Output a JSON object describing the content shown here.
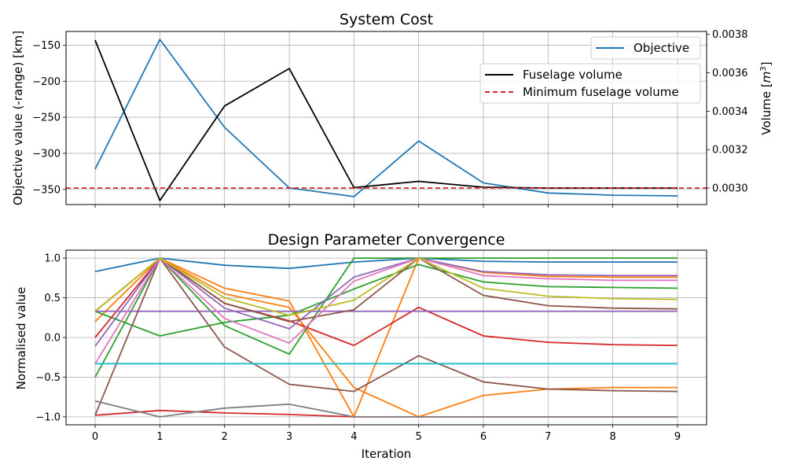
{
  "chart_data": [
    {
      "type": "line",
      "title": "System Cost",
      "xlabel": "",
      "ylabel": "Objective value (-range) [km]",
      "y2label_main": "Volume [",
      "y2label_sup": "m",
      "y2label_exp": "3",
      "y2label_end": "]",
      "x": [
        0,
        1,
        2,
        3,
        4,
        5,
        6,
        7,
        8,
        9
      ],
      "xlim": [
        -0.45,
        9.45
      ],
      "ylim": [
        -371,
        -131
      ],
      "y_ticks": [
        -150,
        -200,
        -250,
        -300,
        -350
      ],
      "y_tick_labels": [
        "−150",
        "−200",
        "−250",
        "−300",
        "−350"
      ],
      "y2lim": [
        0.002914,
        0.003815
      ],
      "y2_ticks": [
        0.003,
        0.0032,
        0.0034,
        0.0036,
        0.0038
      ],
      "y2_tick_labels": [
        "0.0030",
        "0.0032",
        "0.0034",
        "0.0036",
        "0.0038"
      ],
      "grid": true,
      "series": [
        {
          "name": "Objective",
          "axis": "left",
          "color": "#1f77b4",
          "dash": "none",
          "values": [
            -322,
            -142,
            -264,
            -348,
            -360,
            -283,
            -341,
            -355,
            -358,
            -359
          ]
        },
        {
          "name": "Fuselage volume",
          "axis": "right",
          "color": "#000000",
          "dash": "none",
          "values": [
            0.00377,
            0.002935,
            0.003427,
            0.003622,
            0.003002,
            0.003035,
            0.003004,
            0.003,
            0.003,
            0.003
          ]
        },
        {
          "name": "Minimum fuselage volume",
          "axis": "right",
          "color": "#d62728",
          "dash": "6,4",
          "hline": true,
          "values": [
            0.003,
            0.003,
            0.003,
            0.003,
            0.003,
            0.003,
            0.003,
            0.003,
            0.003,
            0.003
          ]
        }
      ],
      "legend1": {
        "placement": "top-right",
        "entries": [
          "Objective"
        ]
      },
      "legend2": {
        "placement": "upper-right",
        "entries": [
          "Fuselage volume",
          "Minimum fuselage volume"
        ]
      }
    },
    {
      "type": "line",
      "title": "Design Parameter Convergence",
      "xlabel": "Iteration",
      "ylabel": "Normalised value",
      "x": [
        0,
        1,
        2,
        3,
        4,
        5,
        6,
        7,
        8,
        9
      ],
      "x_tick_labels": [
        "0",
        "1",
        "2",
        "3",
        "4",
        "5",
        "6",
        "7",
        "8",
        "9"
      ],
      "xlim": [
        -0.45,
        9.45
      ],
      "ylim": [
        -1.1,
        1.1
      ],
      "y_ticks": [
        1.0,
        0.5,
        0.0,
        -0.5,
        -1.0
      ],
      "y_tick_labels": [
        "1.0",
        "0.5",
        "0.0",
        "−0.5",
        "−1.0"
      ],
      "grid": true,
      "series": [
        {
          "color": "#1f77b4",
          "values": [
            0.83,
            1.0,
            0.91,
            0.87,
            0.95,
            1.0,
            0.96,
            0.95,
            0.95,
            0.95
          ]
        },
        {
          "color": "#ff7f0e",
          "values": [
            0.33,
            1.0,
            0.62,
            0.46,
            -1.0,
            1.0,
            0.82,
            0.77,
            0.76,
            0.76
          ]
        },
        {
          "color": "#ff7f0e",
          "values": [
            0.2,
            1.0,
            0.55,
            0.38,
            -0.63,
            -1.0,
            -0.73,
            -0.65,
            -0.63,
            -0.63
          ]
        },
        {
          "color": "#2ca02c",
          "values": [
            -0.5,
            1.0,
            0.15,
            -0.21,
            1.0,
            1.0,
            1.0,
            1.0,
            1.0,
            1.0
          ]
        },
        {
          "color": "#2ca02c",
          "values": [
            0.33,
            0.02,
            0.19,
            0.28,
            0.61,
            0.92,
            0.7,
            0.64,
            0.63,
            0.62
          ]
        },
        {
          "color": "#d62728",
          "values": [
            0.0,
            1.0,
            0.43,
            0.21,
            -0.1,
            0.38,
            0.02,
            -0.06,
            -0.09,
            -0.1
          ]
        },
        {
          "color": "#d62728",
          "values": [
            -0.98,
            -0.92,
            -0.95,
            -0.97,
            -1.0,
            -1.0,
            -1.0,
            -1.0,
            -1.0,
            -1.0
          ]
        },
        {
          "color": "#9467bd",
          "values": [
            0.33,
            0.33,
            0.33,
            0.33,
            0.33,
            0.33,
            0.33,
            0.33,
            0.33,
            0.33
          ]
        },
        {
          "color": "#9467bd",
          "values": [
            -0.11,
            1.0,
            0.37,
            0.11,
            0.76,
            1.0,
            0.83,
            0.79,
            0.78,
            0.78
          ]
        },
        {
          "color": "#8c564b",
          "values": [
            -0.98,
            1.0,
            -0.12,
            -0.59,
            -0.68,
            -0.23,
            -0.56,
            -0.65,
            -0.67,
            -0.68
          ]
        },
        {
          "color": "#8c564b",
          "values": [
            0.33,
            1.0,
            0.43,
            0.2,
            0.35,
            1.0,
            0.53,
            0.4,
            0.37,
            0.36
          ]
        },
        {
          "color": "#e377c2",
          "values": [
            -0.33,
            1.0,
            0.24,
            -0.07,
            0.71,
            1.0,
            0.78,
            0.74,
            0.72,
            0.72
          ]
        },
        {
          "color": "#7f7f7f",
          "values": [
            -0.8,
            -1.0,
            -0.89,
            -0.84,
            -1.0,
            -1.0,
            -1.0,
            -1.0,
            -1.0,
            -1.0
          ]
        },
        {
          "color": "#bcbd22",
          "values": [
            0.33,
            1.0,
            0.5,
            0.28,
            0.47,
            1.0,
            0.62,
            0.52,
            0.49,
            0.48
          ]
        },
        {
          "color": "#17becf",
          "values": [
            -0.33,
            -0.33,
            -0.33,
            -0.33,
            -0.33,
            -0.33,
            -0.33,
            -0.33,
            -0.33,
            -0.33
          ]
        }
      ]
    }
  ]
}
